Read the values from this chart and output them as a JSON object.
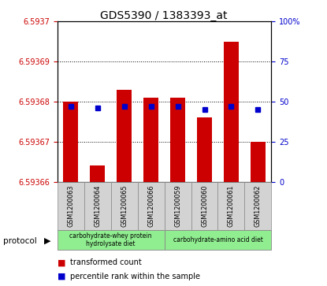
{
  "title": "GDS5390 / 1383393_at",
  "samples": [
    "GSM1200063",
    "GSM1200064",
    "GSM1200065",
    "GSM1200066",
    "GSM1200059",
    "GSM1200060",
    "GSM1200061",
    "GSM1200062"
  ],
  "red_values": [
    6.59368,
    6.593664,
    6.593683,
    6.593681,
    6.593681,
    6.593676,
    6.593695,
    6.59367
  ],
  "blue_values": [
    47,
    46,
    47,
    47,
    47,
    45,
    47,
    45
  ],
  "y_min": 6.59366,
  "y_max": 6.5937,
  "y_ticks": [
    6.59366,
    6.59367,
    6.59368,
    6.59369,
    6.5937
  ],
  "y_tick_labels": [
    "6.59366",
    "6.59367",
    "6.59368",
    "6.59369",
    "6.5937"
  ],
  "y_right_ticks": [
    0,
    25,
    50,
    75,
    100
  ],
  "y_right_labels": [
    "0",
    "25",
    "50",
    "75",
    "100%"
  ],
  "bar_color": "#CC0000",
  "dot_color": "#0000CC",
  "bg_color": "#ffffff",
  "plot_bg_color": "#ffffff",
  "tick_color_left": "#CC0000",
  "tick_color_right": "#0000CC",
  "grid_color": "#000000",
  "sample_bg_color": "#d3d3d3",
  "protocol_bg_color": "#90EE90",
  "protocol_text_group1": "carbohydrate-whey protein\nhydrolysate diet",
  "protocol_text_group2": "carbohydrate-amino acid diet",
  "legend_red": "transformed count",
  "legend_blue": "percentile rank within the sample",
  "protocol_label": "protocol"
}
